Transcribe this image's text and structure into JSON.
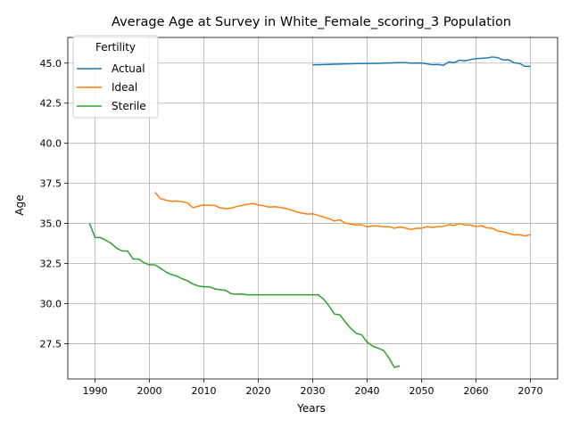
{
  "chart_data": {
    "type": "line",
    "title": "Average Age at Survey in White_Female_scoring_3 Population",
    "xlabel": "Years",
    "ylabel": "Age",
    "xlim": [
      1985,
      2075
    ],
    "ylim": [
      25.3,
      46.6
    ],
    "xticks": [
      1990,
      2000,
      2010,
      2020,
      2030,
      2040,
      2050,
      2060,
      2070
    ],
    "yticks": [
      27.5,
      30.0,
      32.5,
      35.0,
      37.5,
      40.0,
      42.5,
      45.0
    ],
    "grid": true,
    "legend": {
      "title": "Fertility",
      "position": "upper-left"
    },
    "series": [
      {
        "name": "Actual",
        "color": "#1f77b4",
        "x": [
          2030,
          2031,
          2032,
          2033,
          2034,
          2035,
          2036,
          2037,
          2038,
          2039,
          2040,
          2041,
          2042,
          2043,
          2044,
          2045,
          2046,
          2047,
          2048,
          2049,
          2050,
          2051,
          2052,
          2053,
          2054,
          2055,
          2056,
          2057,
          2058,
          2059,
          2060,
          2061,
          2062,
          2063,
          2064,
          2065,
          2066,
          2067,
          2068,
          2069,
          2070
        ],
        "y": [
          44.9,
          44.9,
          44.91,
          44.92,
          44.93,
          44.94,
          44.95,
          44.96,
          44.97,
          44.97,
          44.98,
          44.98,
          44.99,
          45.0,
          45.01,
          45.02,
          45.03,
          45.03,
          45.0,
          45.0,
          45.01,
          44.95,
          44.9,
          44.92,
          44.86,
          45.07,
          45.03,
          45.18,
          45.14,
          45.22,
          45.28,
          45.3,
          45.32,
          45.38,
          45.34,
          45.19,
          45.21,
          45.02,
          44.98,
          44.8,
          44.8
        ]
      },
      {
        "name": "Ideal",
        "color": "#ff7f0e",
        "x": [
          2001,
          2002,
          2003,
          2004,
          2005,
          2006,
          2007,
          2008,
          2009,
          2010,
          2011,
          2012,
          2013,
          2014,
          2015,
          2016,
          2017,
          2018,
          2019,
          2020,
          2021,
          2022,
          2023,
          2024,
          2025,
          2026,
          2027,
          2028,
          2029,
          2030,
          2031,
          2032,
          2033,
          2034,
          2035,
          2036,
          2037,
          2038,
          2039,
          2040,
          2041,
          2042,
          2043,
          2044,
          2045,
          2046,
          2047,
          2048,
          2049,
          2050,
          2051,
          2052,
          2053,
          2054,
          2055,
          2056,
          2057,
          2058,
          2059,
          2060,
          2061,
          2062,
          2063,
          2064,
          2065,
          2066,
          2067,
          2068,
          2069,
          2070
        ],
        "y": [
          36.95,
          36.55,
          36.45,
          36.38,
          36.4,
          36.35,
          36.28,
          35.98,
          36.08,
          36.15,
          36.13,
          36.12,
          35.97,
          35.92,
          35.95,
          36.05,
          36.12,
          36.2,
          36.25,
          36.15,
          36.1,
          36.02,
          36.05,
          36.0,
          35.93,
          35.85,
          35.72,
          35.65,
          35.58,
          35.6,
          35.5,
          35.4,
          35.3,
          35.15,
          35.23,
          35.02,
          34.97,
          34.9,
          34.92,
          34.78,
          34.85,
          34.85,
          34.78,
          34.8,
          34.7,
          34.78,
          34.72,
          34.62,
          34.7,
          34.7,
          34.8,
          34.75,
          34.8,
          34.82,
          34.92,
          34.88,
          35.0,
          34.9,
          34.9,
          34.8,
          34.86,
          34.72,
          34.7,
          34.53,
          34.48,
          34.38,
          34.28,
          34.3,
          34.22,
          34.3
        ]
      },
      {
        "name": "Sterile",
        "color": "#2ca02c",
        "x": [
          1989,
          1990,
          1991,
          1992,
          1993,
          1994,
          1995,
          1996,
          1997,
          1998,
          1999,
          2000,
          2001,
          2002,
          2003,
          2004,
          2005,
          2006,
          2007,
          2008,
          2009,
          2010,
          2011,
          2012,
          2013,
          2014,
          2015,
          2016,
          2017,
          2018,
          2019,
          2020,
          2021,
          2022,
          2023,
          2024,
          2025,
          2026,
          2027,
          2028,
          2029,
          2030,
          2031,
          2032,
          2033,
          2034,
          2035,
          2036,
          2037,
          2038,
          2039,
          2040,
          2041,
          2042,
          2043,
          2044,
          2045,
          2046
        ],
        "y": [
          35.0,
          34.12,
          34.12,
          33.95,
          33.75,
          33.45,
          33.28,
          33.28,
          32.78,
          32.78,
          32.55,
          32.42,
          32.42,
          32.2,
          31.98,
          31.82,
          31.72,
          31.55,
          31.42,
          31.22,
          31.1,
          31.05,
          31.05,
          30.92,
          30.87,
          30.82,
          30.62,
          30.58,
          30.6,
          30.55,
          30.55,
          30.55,
          30.55,
          30.55,
          30.55,
          30.55,
          30.55,
          30.55,
          30.55,
          30.55,
          30.55,
          30.55,
          30.55,
          30.28,
          29.85,
          29.35,
          29.3,
          28.85,
          28.45,
          28.15,
          28.05,
          27.6,
          27.35,
          27.22,
          27.08,
          26.62,
          26.02,
          26.12
        ]
      }
    ]
  }
}
